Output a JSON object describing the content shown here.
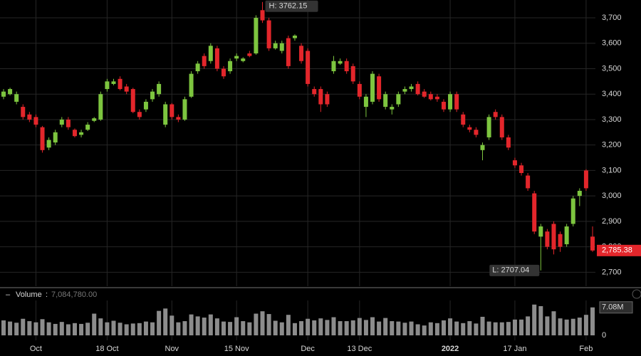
{
  "chart_data": {
    "type": "candlestick",
    "up_color": "#7dc53f",
    "down_color": "#e3262b",
    "grid": true,
    "categories": [
      null,
      null,
      null,
      null,
      null,
      "Oct",
      null,
      null,
      null,
      null,
      null,
      null,
      null,
      null,
      null,
      null,
      "18 Oct",
      null,
      null,
      null,
      null,
      null,
      null,
      null,
      null,
      null,
      "Nov",
      null,
      null,
      null,
      null,
      null,
      null,
      null,
      null,
      null,
      "15 Nov",
      null,
      null,
      null,
      null,
      null,
      null,
      null,
      null,
      null,
      null,
      "Dec",
      null,
      null,
      null,
      null,
      null,
      null,
      null,
      "13 Dec",
      null,
      null,
      null,
      null,
      null,
      null,
      null,
      null,
      null,
      null,
      null,
      null,
      null,
      "2022",
      null,
      null,
      null,
      null,
      null,
      null,
      null,
      null,
      null,
      "17 Jan",
      null,
      null,
      null,
      null,
      null,
      null,
      null,
      null,
      null,
      null,
      "Feb",
      null
    ],
    "open": [
      3390,
      3400,
      3370,
      3350,
      3320,
      3310,
      3270,
      3190,
      3210,
      3280,
      3300,
      3260,
      3240,
      3260,
      3295,
      3300,
      3420,
      3440,
      3460,
      3430,
      3420,
      3330,
      3340,
      3380,
      3400,
      3280,
      3360,
      3310,
      3300,
      3390,
      3490,
      3550,
      3530,
      3580,
      3500,
      3490,
      3540,
      3530,
      3560,
      3560,
      3730,
      3690,
      3580,
      3570,
      3620,
      3620,
      3590,
      3570,
      3420,
      3420,
      3400,
      3490,
      3520,
      3530,
      3510,
      3440,
      3350,
      3370,
      3470,
      3350,
      3340,
      3360,
      3410,
      3420,
      3440,
      3410,
      3400,
      3390,
      3370,
      3340,
      3400,
      3320,
      3270,
      3260,
      3180,
      3230,
      3330,
      3310,
      3230,
      3140,
      3120,
      3080,
      3010,
      2840,
      2860,
      2890,
      2850,
      2810,
      2890,
      3000,
      3100,
      2840
    ],
    "high": [
      3420,
      3425,
      3410,
      3360,
      3330,
      3320,
      3275,
      3230,
      3260,
      3310,
      3310,
      3265,
      3260,
      3290,
      3310,
      3410,
      3460,
      3460,
      3470,
      3440,
      3425,
      3340,
      3380,
      3420,
      3450,
      3370,
      3365,
      3320,
      3390,
      3490,
      3530,
      3560,
      3600,
      3590,
      3510,
      3540,
      3560,
      3545,
      3570,
      3710,
      3762.15,
      3700,
      3610,
      3610,
      3630,
      3635,
      3600,
      3580,
      3430,
      3430,
      3410,
      3550,
      3540,
      3540,
      3520,
      3450,
      3400,
      3490,
      3480,
      3410,
      3360,
      3410,
      3430,
      3440,
      3450,
      3420,
      3410,
      3400,
      3380,
      3410,
      3410,
      3330,
      3280,
      3270,
      3210,
      3320,
      3340,
      3320,
      3240,
      3150,
      3130,
      3090,
      3020,
      2890,
      2870,
      2900,
      2860,
      2890,
      3000,
      3030,
      3105,
      2880
    ],
    "low": [
      3380,
      3395,
      3360,
      3300,
      3290,
      3270,
      3170,
      3180,
      3200,
      3270,
      3260,
      3230,
      3230,
      3255,
      3290,
      3295,
      3410,
      3435,
      3415,
      3400,
      3325,
      3300,
      3330,
      3370,
      3390,
      3270,
      3300,
      3290,
      3295,
      3385,
      3480,
      3500,
      3520,
      3490,
      3460,
      3480,
      3530,
      3525,
      3545,
      3555,
      3680,
      3570,
      3575,
      3560,
      3500,
      3610,
      3520,
      3430,
      3390,
      3330,
      3350,
      3480,
      3515,
      3480,
      3440,
      3380,
      3310,
      3360,
      3370,
      3340,
      3320,
      3350,
      3400,
      3410,
      3395,
      3385,
      3375,
      3370,
      3330,
      3330,
      3330,
      3270,
      3250,
      3230,
      3140,
      3220,
      3300,
      3220,
      3180,
      3110,
      3080,
      3020,
      2850,
      2707.04,
      2790,
      2770,
      2780,
      2800,
      2880,
      2960,
      3020,
      2780
    ],
    "close": [
      3410,
      3420,
      3400,
      3310,
      3300,
      3280,
      3180,
      3220,
      3250,
      3300,
      3270,
      3235,
      3250,
      3280,
      3305,
      3400,
      3450,
      3450,
      3420,
      3410,
      3330,
      3310,
      3370,
      3410,
      3440,
      3360,
      3310,
      3300,
      3380,
      3480,
      3520,
      3510,
      3590,
      3500,
      3470,
      3530,
      3550,
      3540,
      3550,
      3700,
      3690,
      3580,
      3600,
      3600,
      3510,
      3630,
      3530,
      3440,
      3400,
      3360,
      3360,
      3530,
      3530,
      3490,
      3450,
      3390,
      3390,
      3480,
      3380,
      3400,
      3350,
      3400,
      3420,
      3430,
      3400,
      3390,
      3380,
      3380,
      3340,
      3400,
      3340,
      3280,
      3260,
      3240,
      3200,
      3310,
      3310,
      3230,
      3190,
      3120,
      3090,
      3030,
      2860,
      2880,
      2800,
      2790,
      2800,
      2880,
      2990,
      3020,
      3030,
      2785.38
    ],
    "ylim": [
      2645,
      3770
    ],
    "yticks": [
      {
        "value": 2700,
        "label": "2,700"
      },
      {
        "value": 2800,
        "label": "2,800"
      },
      {
        "value": 2900,
        "label": "2,900"
      },
      {
        "value": 3000,
        "label": "3,000"
      },
      {
        "value": 3100,
        "label": "3,100"
      },
      {
        "value": 3200,
        "label": "3,200"
      },
      {
        "value": 3300,
        "label": "3,300"
      },
      {
        "value": 3400,
        "label": "3,400"
      },
      {
        "value": 3500,
        "label": "3,500"
      },
      {
        "value": 3600,
        "label": "3,600"
      },
      {
        "value": 3700,
        "label": "3,700"
      }
    ],
    "annotations": {
      "high": "H: 3762.15",
      "low": "L: 2707.04",
      "last": "2,785.38"
    },
    "volume": {
      "name": "Volume",
      "color": "#8c8c8c",
      "header_value": "7,084,780.00",
      "last_label": "7.08M",
      "values": [
        3800000,
        3500000,
        3200000,
        4200000,
        3600000,
        3300000,
        4100000,
        3300000,
        2900000,
        3400000,
        2800000,
        3100000,
        2900000,
        3200000,
        5500000,
        4300000,
        3300000,
        3700000,
        3200000,
        2800000,
        3000000,
        3100000,
        3500000,
        3300000,
        6200000,
        6800000,
        5000000,
        3300000,
        3600000,
        5300000,
        4800000,
        4500000,
        5300000,
        4300000,
        3500000,
        3400000,
        4600000,
        3600000,
        3300000,
        5500000,
        6100000,
        5400000,
        3700000,
        3300000,
        5200000,
        3100000,
        3600000,
        4200000,
        3800000,
        4300000,
        3900000,
        4600000,
        3600000,
        3600000,
        3800000,
        4400000,
        3900000,
        4600000,
        3500000,
        4400000,
        3600000,
        3500000,
        3200000,
        3500000,
        2800000,
        2500000,
        3300000,
        3100000,
        3800000,
        4300000,
        3500000,
        3100000,
        3600000,
        3000000,
        4700000,
        3500000,
        3300000,
        3300000,
        3400000,
        4000000,
        4000000,
        4800000,
        7800000,
        7400000,
        4800000,
        6100000,
        4300000,
        4000000,
        4200000,
        4500000,
        5200000,
        7084780
      ],
      "ylim": [
        0,
        8300000
      ],
      "yticks": [
        0
      ]
    }
  }
}
